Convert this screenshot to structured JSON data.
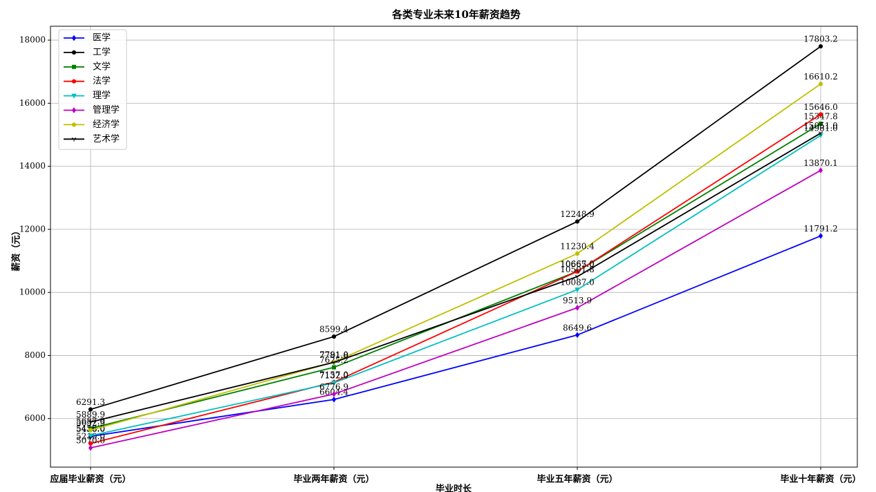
{
  "chart_data": {
    "type": "line",
    "title": "各类专业未来10年薪资趋势",
    "x_label": "毕业时长",
    "y_label": "薪资（元）",
    "categories": [
      "应届毕业薪资（元）",
      "毕业两年薪资（元）",
      "毕业五年薪资（元）",
      "毕业十年薪资（元）"
    ],
    "ylim": [
      4460,
      18440
    ],
    "yticks": [
      6000,
      8000,
      10000,
      12000,
      14000,
      16000,
      18000
    ],
    "grid": true,
    "legend": "upper-left",
    "series": [
      {
        "name": "医学",
        "color": "#0000ff",
        "marker": "diamond",
        "values": [
          5436.0,
          6604.4,
          8649.6,
          11791.2
        ],
        "value_labels": [
          "5436.0",
          "6604.4",
          "8649.6",
          "11791.2"
        ]
      },
      {
        "name": "工学",
        "color": "#000000",
        "marker": "circle",
        "values": [
          6291.3,
          8599.4,
          12248.9,
          17803.2
        ],
        "value_labels": [
          "6291.3",
          "8599.4",
          "12248.9",
          "17803.2"
        ]
      },
      {
        "name": "文学",
        "color": "#008000",
        "marker": "square",
        "values": [
          5687.9,
          7625.2,
          10667.0,
          15347.8
        ],
        "value_labels": [
          "5687.9",
          "7625.2",
          "10667.0",
          "15347.8"
        ]
      },
      {
        "name": "法学",
        "color": "#ff0000",
        "marker": "circle",
        "values": [
          5210.0,
          7157.0,
          10665.0,
          15646.0
        ],
        "value_labels": [
          "5210.0",
          "7157.0",
          "10665.0",
          "15646.0"
        ]
      },
      {
        "name": "理学",
        "color": "#00bfbf",
        "marker": "triangle",
        "values": [
          5456.0,
          7132.0,
          10087.0,
          14981.0
        ],
        "value_labels": [
          "5456.0",
          "7132.0",
          "10087.0",
          "14981.0"
        ]
      },
      {
        "name": "管理学",
        "color": "#bf00bf",
        "marker": "diamond",
        "values": [
          5070.0,
          6776.9,
          9513.9,
          13870.1
        ],
        "value_labels": [
          "5070.0",
          "6776.9",
          "9513.9",
          "13870.1"
        ]
      },
      {
        "name": "经济学",
        "color": "#bfbf00",
        "marker": "circle",
        "values": [
          5632.9,
          7791.0,
          11230.4,
          16610.2
        ],
        "value_labels": [
          "5632.9",
          "7791.0",
          "11230.4",
          "16610.2"
        ]
      },
      {
        "name": "艺术学",
        "color": "#000000",
        "marker": "tri",
        "values": [
          5889.9,
          7781.8,
          10501.8,
          15051.0
        ],
        "value_labels": [
          "5889.9",
          "7781.8",
          "10501.8",
          "15051.0"
        ]
      }
    ]
  }
}
